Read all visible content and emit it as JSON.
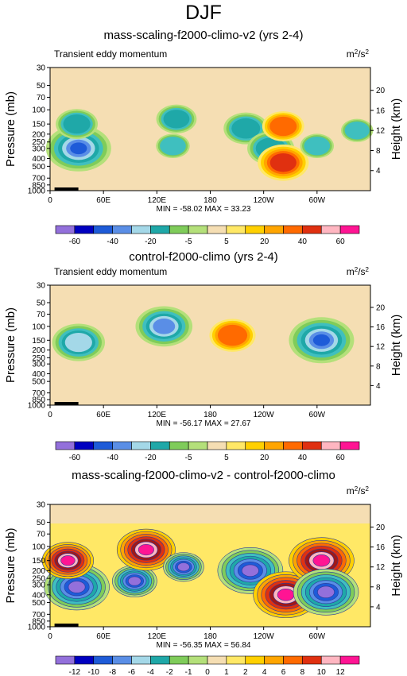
{
  "figure": {
    "title": "DJF",
    "y_axis_label": "Pressure (mb)",
    "y2_axis_label": "Height (km)",
    "units": "m2/s2",
    "variable_label": "Transient eddy momentum"
  },
  "palette": [
    "#9370db",
    "#0000c0",
    "#1e5bd8",
    "#5a8ee6",
    "#a4d8e8",
    "#1fa8a8",
    "#3fbfbf",
    "#7fcc5a",
    "#b4e07a",
    "#f5deb3",
    "#ffe866",
    "#ffd000",
    "#ffa500",
    "#ff6a00",
    "#e03010",
    "#a01818",
    "#ffb6c1",
    "#ff1493"
  ],
  "chart_data": [
    {
      "type": "heatmap",
      "title": "mass-scaling-f2000-climo-v2 (yrs 2-4)",
      "subtitle": "Transient eddy momentum",
      "units": "m2/s2",
      "xlabel": "",
      "ylabel": "Pressure (mb)",
      "y2label": "Height (km)",
      "x_ticks": [
        "0",
        "60E",
        "120E",
        "180",
        "120W",
        "60W"
      ],
      "y_ticks": [
        "30",
        "50",
        "70",
        "100",
        "150",
        "200",
        "250",
        "300",
        "400",
        "500",
        "700",
        "850",
        "1000"
      ],
      "y2_ticks": [
        "20",
        "16",
        "12",
        "8",
        "4"
      ],
      "min": -58.02,
      "max": 33.23,
      "stats_text": "MIN = -58.02  MAX = 33.23",
      "levels": [
        -60,
        -50,
        -40,
        -30,
        -20,
        -10,
        -5,
        -1,
        1,
        5,
        10,
        20,
        30,
        40,
        50,
        60
      ],
      "colorbar_labels": [
        "-60",
        "-40",
        "-20",
        "-5",
        "5",
        "20",
        "40",
        "60"
      ],
      "features": [
        {
          "lon": 32,
          "p": 300,
          "value": -58
        },
        {
          "lon": 30,
          "p": 150,
          "value": -22
        },
        {
          "lon": 142,
          "p": 130,
          "value": -20
        },
        {
          "lon": 138,
          "p": 280,
          "value": -12
        },
        {
          "lon": 220,
          "p": 170,
          "value": -25
        },
        {
          "lon": 248,
          "p": 300,
          "value": -28
        },
        {
          "lon": 262,
          "p": 160,
          "value": 22
        },
        {
          "lon": 262,
          "p": 450,
          "value": 33
        },
        {
          "lon": 300,
          "p": 280,
          "value": -12
        },
        {
          "lon": 345,
          "p": 180,
          "value": -10
        }
      ]
    },
    {
      "type": "heatmap",
      "title": "control-f2000-climo (yrs 2-4)",
      "subtitle": "Transient eddy momentum",
      "units": "m2/s2",
      "xlabel": "",
      "ylabel": "Pressure (mb)",
      "y2label": "Height (km)",
      "x_ticks": [
        "0",
        "60E",
        "120E",
        "180",
        "120W",
        "60W"
      ],
      "y_ticks": [
        "30",
        "50",
        "70",
        "100",
        "150",
        "200",
        "250",
        "300",
        "400",
        "500",
        "700",
        "850",
        "1000"
      ],
      "y2_ticks": [
        "20",
        "16",
        "12",
        "8",
        "4"
      ],
      "min": -56.17,
      "max": 27.67,
      "stats_text": "MIN = -56.17  MAX = 27.67",
      "levels": [
        -60,
        -50,
        -40,
        -30,
        -20,
        -10,
        -5,
        -1,
        1,
        5,
        10,
        20,
        30,
        40,
        50,
        60
      ],
      "colorbar_labels": [
        "-60",
        "-40",
        "-20",
        "-5",
        "5",
        "20",
        "40",
        "60"
      ],
      "features": [
        {
          "lon": 32,
          "p": 160,
          "value": -35
        },
        {
          "lon": 128,
          "p": 100,
          "value": -40
        },
        {
          "lon": 205,
          "p": 130,
          "value": 27
        },
        {
          "lon": 305,
          "p": 150,
          "value": -56
        }
      ]
    },
    {
      "type": "heatmap",
      "title": "mass-scaling-f2000-climo-v2 - control-f2000-climo",
      "subtitle": "",
      "units": "m2/s2",
      "xlabel": "",
      "ylabel": "Pressure (mb)",
      "y2label": "Height (km)",
      "x_ticks": [
        "0",
        "60E",
        "120E",
        "180",
        "120W",
        "60W"
      ],
      "y_ticks": [
        "30",
        "50",
        "70",
        "100",
        "150",
        "200",
        "250",
        "300",
        "400",
        "500",
        "700",
        "850",
        "1000"
      ],
      "y2_ticks": [
        "20",
        "16",
        "12",
        "8",
        "4"
      ],
      "min": -56.35,
      "max": 56.84,
      "stats_text": "MIN = -56.35  MAX = 56.84",
      "levels": [
        -12,
        -10,
        -8,
        -6,
        -4,
        -2,
        -1,
        0,
        1,
        2,
        4,
        6,
        8,
        10,
        12
      ],
      "colorbar_labels": [
        "-12",
        "-10",
        "-8",
        "-6",
        "-4",
        "-2",
        "-1",
        "0",
        "1",
        "2",
        "4",
        "6",
        "8",
        "10",
        "12"
      ],
      "features": [
        {
          "lon": 30,
          "p": 320,
          "value": -40
        },
        {
          "lon": 20,
          "p": 150,
          "value": 20
        },
        {
          "lon": 95,
          "p": 270,
          "value": -15
        },
        {
          "lon": 108,
          "p": 110,
          "value": 25
        },
        {
          "lon": 150,
          "p": 180,
          "value": -12
        },
        {
          "lon": 225,
          "p": 200,
          "value": -56
        },
        {
          "lon": 265,
          "p": 400,
          "value": 56
        },
        {
          "lon": 305,
          "p": 150,
          "value": 40
        },
        {
          "lon": 310,
          "p": 370,
          "value": -30
        }
      ]
    }
  ]
}
